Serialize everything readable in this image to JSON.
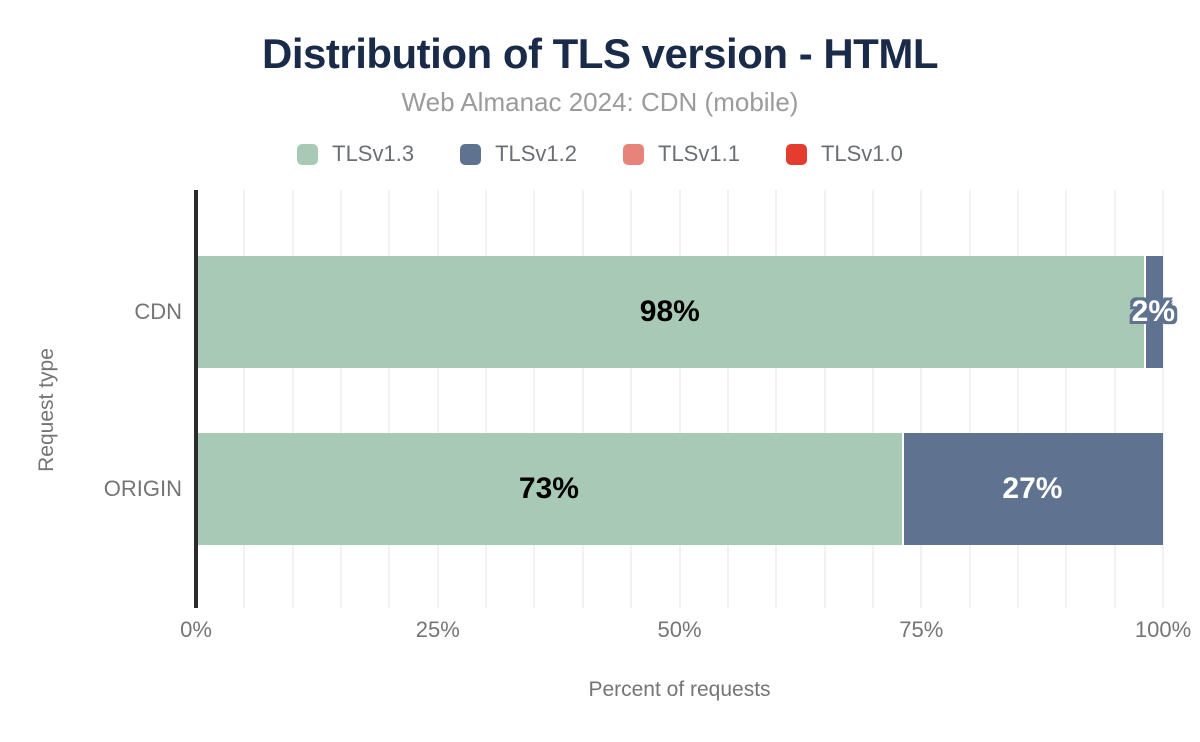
{
  "chart_data": {
    "type": "bar",
    "orientation": "horizontal",
    "stacked": true,
    "title": "Distribution of TLS version - HTML",
    "subtitle": "Web Almanac 2024: CDN (mobile)",
    "categories": [
      "CDN",
      "ORIGIN"
    ],
    "series": [
      {
        "name": "TLSv1.3",
        "color": "#a9c9b7",
        "label_color": "#000000",
        "values": [
          98,
          73
        ]
      },
      {
        "name": "TLSv1.2",
        "color": "#5f7390",
        "label_color": "#ffffff",
        "values": [
          2,
          27
        ]
      },
      {
        "name": "TLSv1.1",
        "color": "#e8837c",
        "label_color": "#ffffff",
        "values": [
          0,
          0
        ]
      },
      {
        "name": "TLSv1.0",
        "color": "#e43d30",
        "label_color": "#ffffff",
        "values": [
          0,
          0
        ]
      }
    ],
    "xlabel": "Percent of requests",
    "ylabel": "Request type",
    "xlim": [
      0,
      100
    ],
    "xticks": [
      {
        "pct": 0,
        "label": "0%"
      },
      {
        "pct": 25,
        "label": "25%"
      },
      {
        "pct": 50,
        "label": "50%"
      },
      {
        "pct": 75,
        "label": "75%"
      },
      {
        "pct": 100,
        "label": "100%"
      }
    ],
    "grid": {
      "show": true,
      "step": 5,
      "color": "#f2f2f2"
    },
    "legend_position": "top",
    "value_label_suffix": "%",
    "theme": {
      "title_color": "#1a2b49",
      "subtitle_color": "#9b9b9b",
      "axis_text_color": "#757575",
      "axis_line_color": "#2b2b2b",
      "background_color": "#ffffff"
    }
  }
}
